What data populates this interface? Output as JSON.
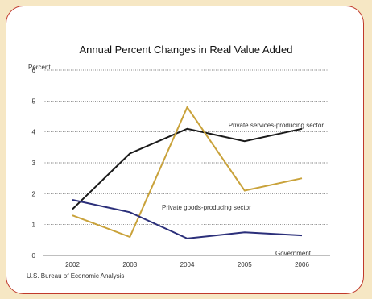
{
  "chart_data": {
    "type": "line",
    "title": "Annual Percent Changes in Real Value Added",
    "ylabel": "Percent",
    "xlabel": "",
    "x": [
      "2002",
      "2003",
      "2004",
      "2005",
      "2006"
    ],
    "ylim": [
      0,
      6
    ],
    "yticks": [
      "0",
      "1",
      "2",
      "3",
      "4",
      "5",
      "6"
    ],
    "grid": true,
    "series": [
      {
        "name": "Private services-producing sector",
        "values": [
          1.5,
          3.3,
          4.1,
          3.7,
          4.1
        ],
        "color": "#1a1a1a"
      },
      {
        "name": "Private goods-producing sector",
        "values": [
          1.3,
          0.6,
          4.8,
          2.1,
          2.5
        ],
        "color": "#c9a23a"
      },
      {
        "name": "Government",
        "values": [
          1.8,
          1.4,
          0.55,
          0.75,
          0.65
        ],
        "color": "#2b2f7a"
      }
    ],
    "source": "U.S. Bureau of Economic Analysis"
  }
}
